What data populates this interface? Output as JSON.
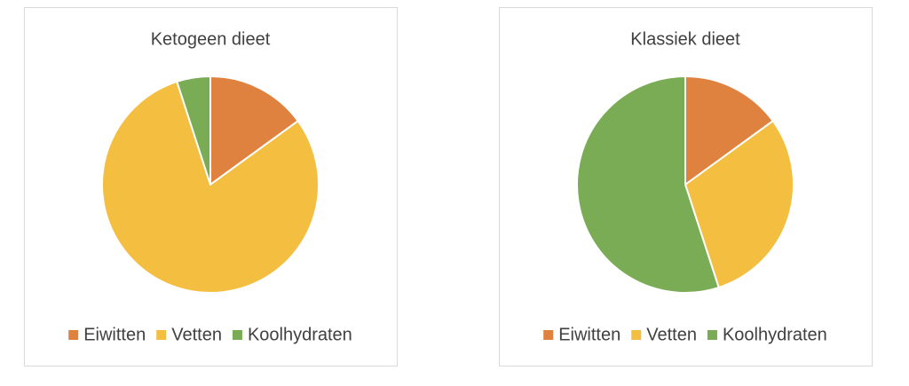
{
  "chart_data": [
    {
      "type": "pie",
      "title": "Ketogeen dieet",
      "categories": [
        "Eiwitten",
        "Vetten",
        "Koolhydraten"
      ],
      "values": [
        15,
        80,
        5
      ],
      "colors": [
        "#e0823f",
        "#f4bf40",
        "#7aab55"
      ]
    },
    {
      "type": "pie",
      "title": "Klassiek dieet",
      "categories": [
        "Eiwitten",
        "Vetten",
        "Koolhydraten"
      ],
      "values": [
        15,
        30,
        55
      ],
      "colors": [
        "#e0823f",
        "#f4bf40",
        "#7aab55"
      ]
    }
  ]
}
